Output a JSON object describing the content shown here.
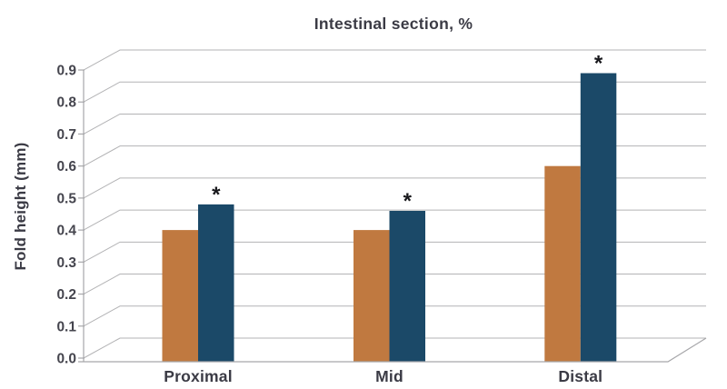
{
  "chart_data": {
    "type": "bar",
    "title": "Intestinal section, %",
    "ylabel": "Fold height (mm)",
    "xlabel": "",
    "categories": [
      "Proximal",
      "Mid",
      "Distal"
    ],
    "series": [
      {
        "color": "#c07940",
        "color_name": "orange",
        "values": [
          0.4,
          0.4,
          0.6
        ],
        "annotations": [
          "",
          "",
          ""
        ]
      },
      {
        "color": "#1b4968",
        "color_name": "dark-blue",
        "values": [
          0.48,
          0.46,
          0.89
        ],
        "annotations": [
          "*",
          "*",
          "*"
        ]
      }
    ],
    "yticks": [
      "0.0",
      "0.1",
      "0.2",
      "0.3",
      "0.4",
      "0.5",
      "0.6",
      "0.7",
      "0.8",
      "0.9"
    ],
    "ylim": [
      0,
      0.9
    ],
    "grid": true,
    "legend": false,
    "significance_marker": "*",
    "style": "pseudo-3d-depth-gridlines"
  },
  "colors": {
    "grid": "#b3b3b5",
    "axis": "#a7a7aa",
    "text": "#3b3b45",
    "annotation": "#18181c",
    "background": "#ffffff"
  }
}
